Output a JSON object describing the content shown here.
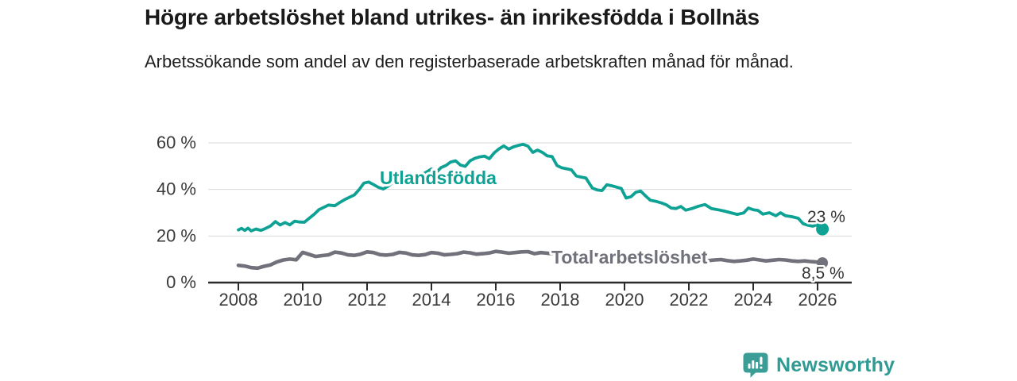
{
  "header": {
    "title": "Högre arbetslöshet bland utrikes- än inrikesfödda i Bollnäs",
    "subtitle": "Arbetssökande som andel av den registerbaserade arbetskraften månad för månad."
  },
  "footer": {
    "brand": "Newsworthy"
  },
  "colors": {
    "accent_teal": "#0ea294",
    "line_gray": "#71717b",
    "axis": "#2b2b2b",
    "gridline": "#dadada",
    "tick_text": "#3a3a3a",
    "value_label": "#333333",
    "logo_teal": "#3a9e96"
  },
  "chart_data": {
    "type": "line",
    "title": "Högre arbetslöshet bland utrikes- än inrikesfödda i Bollnäs",
    "subtitle": "Arbetssökande som andel av den registerbaserade arbetskraften månad för månad.",
    "xlabel": "",
    "ylabel": "",
    "grid": "horizontal",
    "legend": "inline-labels",
    "xlim": [
      2007.05,
      2027.05
    ],
    "ylim": [
      0,
      62
    ],
    "x_ticks": [
      2008,
      2010,
      2012,
      2014,
      2016,
      2018,
      2020,
      2022,
      2024,
      2026
    ],
    "y_ticks": [
      {
        "value": 0,
        "label": "0 %"
      },
      {
        "value": 20,
        "label": "20 %"
      },
      {
        "value": 40,
        "label": "40 %"
      },
      {
        "value": 60,
        "label": "60 %"
      }
    ],
    "series": [
      {
        "id": "utlandsfodda",
        "name": "Utlandsfödda",
        "color": "#0ea294",
        "end_label": "23 %",
        "points": [
          [
            2008.0,
            22.6
          ],
          [
            2008.1,
            23.3
          ],
          [
            2008.2,
            22.4
          ],
          [
            2008.3,
            23.4
          ],
          [
            2008.4,
            22.2
          ],
          [
            2008.55,
            23.0
          ],
          [
            2008.7,
            22.4
          ],
          [
            2008.85,
            23.3
          ],
          [
            2009.0,
            24.3
          ],
          [
            2009.15,
            26.2
          ],
          [
            2009.3,
            24.7
          ],
          [
            2009.45,
            25.8
          ],
          [
            2009.6,
            24.8
          ],
          [
            2009.75,
            26.4
          ],
          [
            2009.9,
            26.0
          ],
          [
            2010.05,
            25.9
          ],
          [
            2010.2,
            27.6
          ],
          [
            2010.35,
            29.3
          ],
          [
            2010.5,
            31.3
          ],
          [
            2010.65,
            32.3
          ],
          [
            2010.8,
            33.3
          ],
          [
            2011.0,
            33.0
          ],
          [
            2011.15,
            34.4
          ],
          [
            2011.3,
            35.6
          ],
          [
            2011.45,
            36.6
          ],
          [
            2011.6,
            37.6
          ],
          [
            2011.75,
            39.9
          ],
          [
            2011.9,
            42.7
          ],
          [
            2012.05,
            43.2
          ],
          [
            2012.2,
            42.1
          ],
          [
            2012.35,
            40.9
          ],
          [
            2012.5,
            40.2
          ],
          [
            2012.65,
            41.4
          ],
          [
            2012.8,
            43.0
          ],
          [
            2013.0,
            44.5
          ],
          [
            2013.15,
            43.8
          ],
          [
            2013.3,
            44.3
          ],
          [
            2013.5,
            45.2
          ],
          [
            2013.7,
            46.3
          ],
          [
            2013.85,
            47.5
          ],
          [
            2014.0,
            48.8
          ],
          [
            2014.15,
            47.3
          ],
          [
            2014.3,
            49.4
          ],
          [
            2014.45,
            50.3
          ],
          [
            2014.6,
            51.8
          ],
          [
            2014.75,
            52.3
          ],
          [
            2014.9,
            50.5
          ],
          [
            2015.05,
            49.9
          ],
          [
            2015.2,
            52.3
          ],
          [
            2015.35,
            53.4
          ],
          [
            2015.5,
            54.0
          ],
          [
            2015.65,
            54.3
          ],
          [
            2015.8,
            53.2
          ],
          [
            2015.95,
            55.7
          ],
          [
            2016.1,
            57.4
          ],
          [
            2016.25,
            58.7
          ],
          [
            2016.4,
            57.3
          ],
          [
            2016.55,
            58.3
          ],
          [
            2016.7,
            58.9
          ],
          [
            2016.85,
            59.4
          ],
          [
            2017.0,
            58.6
          ],
          [
            2017.15,
            55.9
          ],
          [
            2017.3,
            56.9
          ],
          [
            2017.45,
            55.9
          ],
          [
            2017.6,
            54.4
          ],
          [
            2017.75,
            54.1
          ],
          [
            2017.9,
            50.3
          ],
          [
            2018.05,
            49.3
          ],
          [
            2018.2,
            48.9
          ],
          [
            2018.35,
            48.4
          ],
          [
            2018.5,
            45.8
          ],
          [
            2018.65,
            45.3
          ],
          [
            2018.8,
            44.9
          ],
          [
            2019.0,
            40.6
          ],
          [
            2019.15,
            39.8
          ],
          [
            2019.3,
            39.5
          ],
          [
            2019.45,
            42.0
          ],
          [
            2019.6,
            41.6
          ],
          [
            2019.75,
            41.0
          ],
          [
            2019.9,
            40.4
          ],
          [
            2020.05,
            36.3
          ],
          [
            2020.2,
            36.9
          ],
          [
            2020.35,
            38.8
          ],
          [
            2020.5,
            39.3
          ],
          [
            2020.65,
            37.3
          ],
          [
            2020.8,
            35.4
          ],
          [
            2021.0,
            34.8
          ],
          [
            2021.15,
            34.2
          ],
          [
            2021.3,
            33.4
          ],
          [
            2021.45,
            32.0
          ],
          [
            2021.6,
            31.8
          ],
          [
            2021.75,
            32.7
          ],
          [
            2021.9,
            31.1
          ],
          [
            2022.1,
            31.8
          ],
          [
            2022.3,
            32.8
          ],
          [
            2022.5,
            33.5
          ],
          [
            2022.7,
            31.8
          ],
          [
            2022.9,
            31.3
          ],
          [
            2023.1,
            30.7
          ],
          [
            2023.3,
            30.0
          ],
          [
            2023.5,
            29.3
          ],
          [
            2023.7,
            29.9
          ],
          [
            2023.85,
            32.0
          ],
          [
            2024.0,
            31.3
          ],
          [
            2024.15,
            31.0
          ],
          [
            2024.3,
            29.4
          ],
          [
            2024.5,
            30.0
          ],
          [
            2024.7,
            28.7
          ],
          [
            2024.85,
            30.0
          ],
          [
            2025.0,
            28.7
          ],
          [
            2025.2,
            28.3
          ],
          [
            2025.4,
            27.6
          ],
          [
            2025.55,
            25.3
          ],
          [
            2025.7,
            24.6
          ],
          [
            2025.85,
            24.2
          ],
          [
            2026.0,
            24.9
          ],
          [
            2026.15,
            23.0
          ]
        ]
      },
      {
        "id": "total-arbetsloshet",
        "name": "Total arbetslöshet",
        "color": "#71717b",
        "end_label": "8,5 %",
        "points": [
          [
            2008.0,
            7.4
          ],
          [
            2008.2,
            7.1
          ],
          [
            2008.4,
            6.4
          ],
          [
            2008.6,
            6.2
          ],
          [
            2008.8,
            7.0
          ],
          [
            2009.0,
            7.6
          ],
          [
            2009.2,
            8.9
          ],
          [
            2009.4,
            9.7
          ],
          [
            2009.6,
            10.1
          ],
          [
            2009.8,
            9.8
          ],
          [
            2010.0,
            13.0
          ],
          [
            2010.2,
            12.1
          ],
          [
            2010.4,
            11.2
          ],
          [
            2010.6,
            11.6
          ],
          [
            2010.8,
            11.9
          ],
          [
            2011.0,
            13.1
          ],
          [
            2011.2,
            12.7
          ],
          [
            2011.4,
            11.9
          ],
          [
            2011.6,
            11.7
          ],
          [
            2011.8,
            12.2
          ],
          [
            2012.0,
            13.2
          ],
          [
            2012.2,
            12.9
          ],
          [
            2012.4,
            12.0
          ],
          [
            2012.6,
            11.8
          ],
          [
            2012.8,
            12.1
          ],
          [
            2013.0,
            13.0
          ],
          [
            2013.2,
            12.7
          ],
          [
            2013.4,
            11.9
          ],
          [
            2013.6,
            11.7
          ],
          [
            2013.8,
            12.0
          ],
          [
            2014.0,
            12.9
          ],
          [
            2014.2,
            12.6
          ],
          [
            2014.4,
            11.9
          ],
          [
            2014.6,
            12.1
          ],
          [
            2014.8,
            12.4
          ],
          [
            2015.0,
            13.1
          ],
          [
            2015.2,
            12.8
          ],
          [
            2015.4,
            12.2
          ],
          [
            2015.6,
            12.4
          ],
          [
            2015.8,
            12.7
          ],
          [
            2016.0,
            13.4
          ],
          [
            2016.2,
            13.1
          ],
          [
            2016.4,
            12.6
          ],
          [
            2016.6,
            12.9
          ],
          [
            2016.8,
            13.2
          ],
          [
            2017.0,
            13.3
          ],
          [
            2017.2,
            12.4
          ],
          [
            2017.4,
            12.9
          ],
          [
            2017.6,
            12.6
          ],
          [
            2017.8,
            12.3
          ],
          [
            2018.0,
            12.6
          ],
          [
            2018.3,
            12.1
          ],
          [
            2018.6,
            11.9
          ],
          [
            2019.0,
            12.1
          ],
          [
            2019.3,
            11.6
          ],
          [
            2019.6,
            11.4
          ],
          [
            2020.0,
            11.7
          ],
          [
            2020.3,
            11.2
          ],
          [
            2020.6,
            11.0
          ],
          [
            2021.0,
            11.1
          ],
          [
            2021.3,
            10.6
          ],
          [
            2021.6,
            10.4
          ],
          [
            2022.0,
            10.3
          ],
          [
            2022.3,
            9.9
          ],
          [
            2022.6,
            9.4
          ],
          [
            2022.8,
            9.7
          ],
          [
            2023.0,
            9.9
          ],
          [
            2023.2,
            9.4
          ],
          [
            2023.4,
            9.1
          ],
          [
            2023.6,
            9.3
          ],
          [
            2023.8,
            9.6
          ],
          [
            2024.0,
            10.1
          ],
          [
            2024.2,
            9.7
          ],
          [
            2024.4,
            9.3
          ],
          [
            2024.6,
            9.6
          ],
          [
            2024.8,
            9.9
          ],
          [
            2025.0,
            9.7
          ],
          [
            2025.2,
            9.3
          ],
          [
            2025.4,
            9.1
          ],
          [
            2025.6,
            9.3
          ],
          [
            2025.8,
            9.0
          ],
          [
            2026.0,
            8.8
          ],
          [
            2026.15,
            8.5
          ]
        ]
      }
    ]
  }
}
